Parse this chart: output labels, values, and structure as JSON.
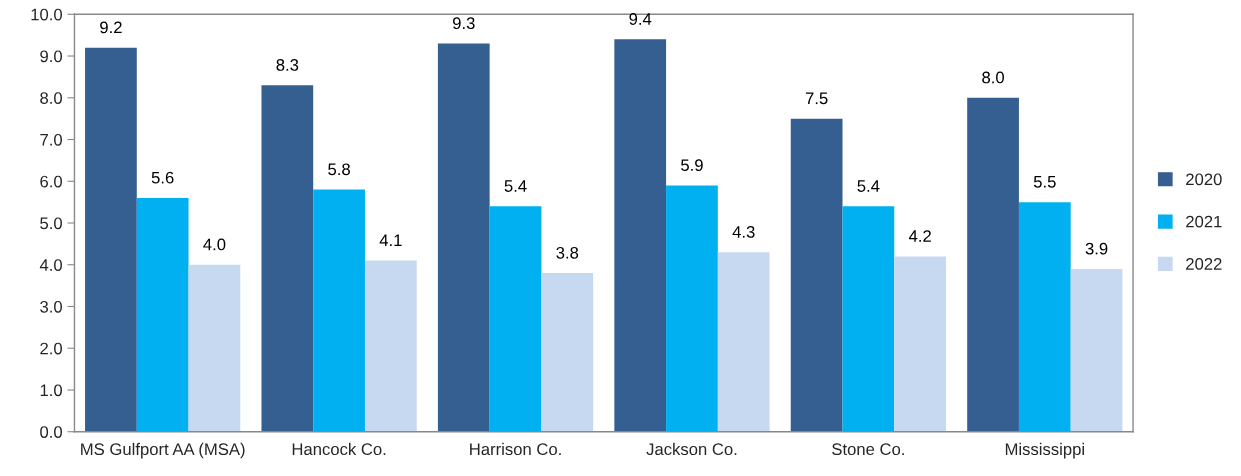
{
  "chart_data": {
    "type": "bar",
    "categories": [
      "MS Gulfport AA (MSA)",
      "Hancock Co.",
      "Harrison Co.",
      "Jackson Co.",
      "Stone Co.",
      "Mississippi"
    ],
    "series": [
      {
        "name": "2020",
        "color": "#365f91",
        "values": [
          9.2,
          8.3,
          9.3,
          9.4,
          7.5,
          8.0
        ],
        "value_labels": [
          "9.2",
          "8.3",
          "9.3",
          "9.4",
          "7.5",
          "8.0"
        ]
      },
      {
        "name": "2021",
        "color": "#00b0f0",
        "values": [
          5.6,
          5.8,
          5.4,
          5.9,
          5.4,
          5.5
        ],
        "value_labels": [
          "5.6",
          "5.8",
          "5.4",
          "5.9",
          "5.4",
          "5.5"
        ]
      },
      {
        "name": "2022",
        "color": "#c6d9f1",
        "values": [
          4.0,
          4.1,
          3.8,
          4.3,
          4.2,
          3.9
        ],
        "value_labels": [
          "4.0",
          "4.1",
          "3.8",
          "4.3",
          "4.2",
          "3.9"
        ]
      }
    ],
    "ylim": [
      0,
      10
    ],
    "yticks": [
      {
        "value": 0,
        "label": "0.0"
      },
      {
        "value": 1,
        "label": "1.0"
      },
      {
        "value": 2,
        "label": "2.0"
      },
      {
        "value": 3,
        "label": "3.0"
      },
      {
        "value": 4,
        "label": "4.0"
      },
      {
        "value": 5,
        "label": "5.0"
      },
      {
        "value": 6,
        "label": "6.0"
      },
      {
        "value": 7,
        "label": "7.0"
      },
      {
        "value": 8,
        "label": "8.0"
      },
      {
        "value": 9,
        "label": "9.0"
      },
      {
        "value": 10,
        "label": "10.0"
      }
    ],
    "legend": "right"
  }
}
